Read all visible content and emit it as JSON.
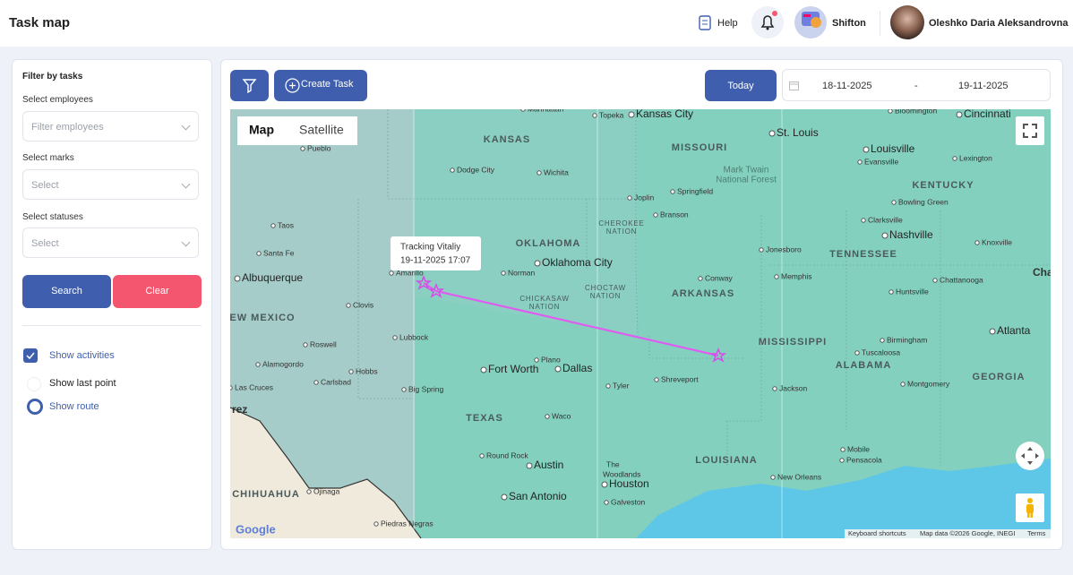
{
  "header": {
    "title": "Task map",
    "help": "Help",
    "company": "Shifton",
    "user": "Oleshko Daria Aleksandrovna"
  },
  "filters": {
    "title": "Filter by tasks",
    "employees_label": "Select employees",
    "employees_placeholder": "Filter employees",
    "marks_label": "Select marks",
    "marks_placeholder": "Select",
    "statuses_label": "Select statuses",
    "statuses_placeholder": "Select",
    "search": "Search",
    "clear": "Clear",
    "show_activities": "Show activities",
    "show_last_point": "Show last point",
    "show_route": "Show route"
  },
  "toolbar": {
    "create_task": "Create Task",
    "today": "Today",
    "date_from": "18-11-2025",
    "date_separator": "-",
    "date_to": "19-11-2025"
  },
  "map": {
    "map_tab": "Map",
    "satellite_tab": "Satellite",
    "tooltip_title": "Tracking Vitaliy",
    "tooltip_time": "19-11-2025 17:07",
    "logo": "Google",
    "keyboard_shortcuts": "Keyboard shortcuts",
    "attribution": "Map data ©2026 Google, INEGI",
    "terms": "Terms",
    "labels": [
      "KANSAS",
      "MISSOURI",
      "OKLAHOMA",
      "ARKANSAS",
      "TENNESSEE",
      "KENTUCKY",
      "MISSISSIPPI",
      "ALABAMA",
      "GEORGIA",
      "TEXAS",
      "LOUISIANA",
      "CHIHUAHUA",
      "EW MEXICO",
      "Manhattan",
      "Topeka",
      "Kansas City",
      "St. Louis",
      "Bloomington",
      "Cincinnati",
      "Pueblo",
      "Dodge City",
      "Wichita",
      "Springfield",
      "Joplin",
      "Louisville",
      "Evansville",
      "Lexington",
      "Mark Twain",
      "National Forest",
      "Bowling Green",
      "Clarksville",
      "Nashville",
      "Knoxville",
      "Taos",
      "Santa Fe",
      "Albuquerque",
      "Amarillo",
      "Oklahoma City",
      "Norman",
      "Conway",
      "Jonesboro",
      "Memphis",
      "Chattanooga",
      "Huntsville",
      "Atlanta",
      "Birmingham",
      "Tuscaloosa",
      "Montgomery",
      "Cha",
      "Clovis",
      "Roswell",
      "Lubbock",
      "Alamogordo",
      "Hobbs",
      "Carlsbad",
      "Las Cruces",
      "Big Spring",
      "Fort Worth",
      "Dallas",
      "Plano",
      "Tyler",
      "Shreveport",
      "Jackson",
      "Waco",
      "Round Rock",
      "Austin",
      "Houston",
      "The",
      "Woodlands",
      "San Antonio",
      "Galveston",
      "New Orleans",
      "Mobile",
      "Pensacola",
      "Ojinaga",
      "Piedras Negras",
      "CHICKASAW",
      "NATION",
      "CHOCTAW",
      "NATION",
      "CHEROKEE",
      "NATION",
      "Branson",
      "rez"
    ]
  }
}
